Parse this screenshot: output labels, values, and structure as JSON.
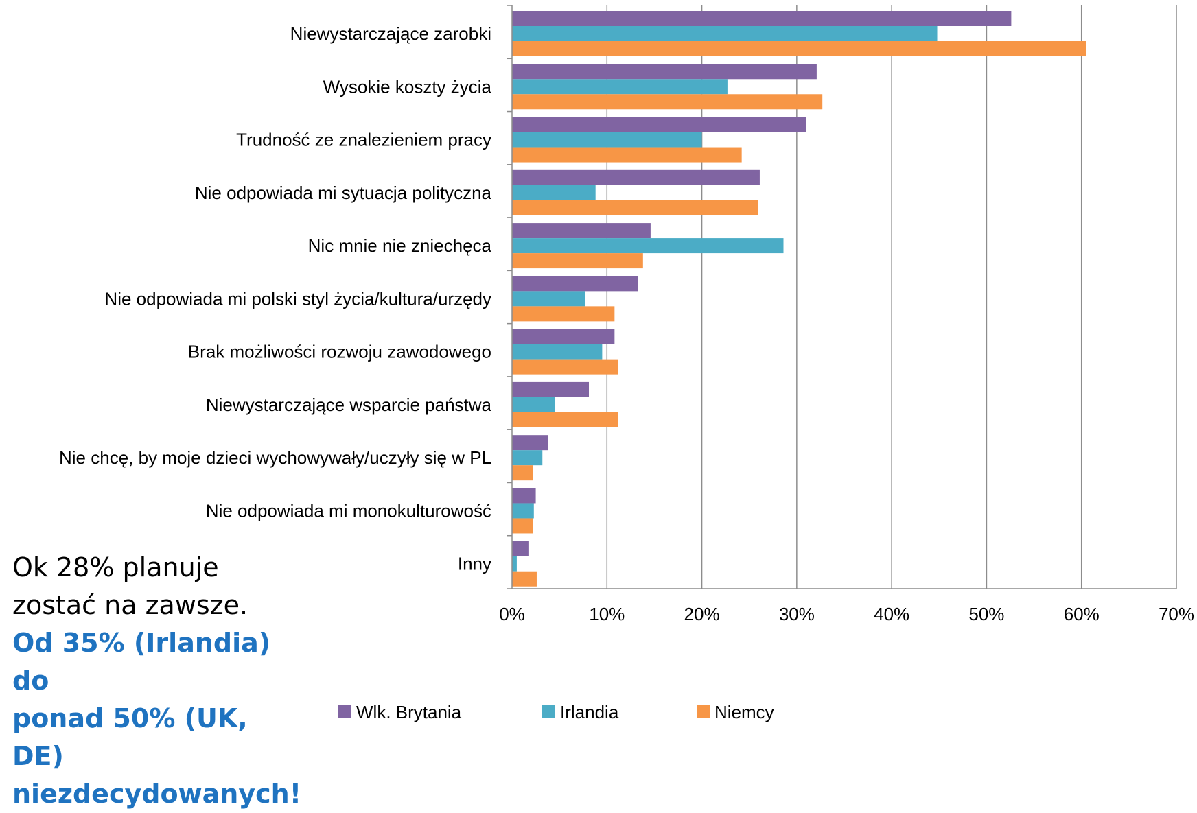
{
  "chart_data": {
    "type": "bar",
    "orientation": "horizontal",
    "categories": [
      "Niewystarczające zarobki",
      "Wysokie koszty życia",
      "Trudność ze znalezieniem pracy",
      "Nie odpowiada mi sytuacja polityczna",
      "Nic mnie nie zniechęca",
      "Nie odpowiada mi polski styl życia/kultura/urzędy",
      "Brak możliwości rozwoju zawodowego",
      "Niewystarczające wsparcie państwa",
      "Nie chcę, by moje dzieci wychowywały/uczyły się w PL",
      "Nie odpowiada mi monokulturowość",
      "Inny"
    ],
    "series": [
      {
        "name": "Wlk. Brytania",
        "color": "#8064a2",
        "values": [
          52.6,
          32.1,
          31.0,
          26.1,
          14.6,
          13.3,
          10.8,
          8.1,
          3.8,
          2.5,
          1.8
        ]
      },
      {
        "name": "Irlandia",
        "color": "#4bacc6",
        "values": [
          44.8,
          22.7,
          20.0,
          8.8,
          28.6,
          7.7,
          9.5,
          4.5,
          3.2,
          2.3,
          0.5
        ]
      },
      {
        "name": "Niemcy",
        "color": "#f79646",
        "values": [
          60.5,
          32.7,
          24.2,
          25.9,
          13.8,
          10.8,
          11.2,
          11.2,
          2.2,
          2.2,
          2.6
        ]
      }
    ],
    "xlim": [
      0,
      70
    ],
    "xticks": [
      "0%",
      "10%",
      "20%",
      "30%",
      "40%",
      "50%",
      "60%",
      "70%"
    ],
    "grid": true,
    "legend": "bottom"
  },
  "note": {
    "line1": "Ok 28% planuje",
    "line2": "zostać na zawsze.",
    "line3": "Od 35% (Irlandia) do",
    "line4": "ponad 50% (UK, DE)",
    "line5": "niezdecydowanych!"
  }
}
